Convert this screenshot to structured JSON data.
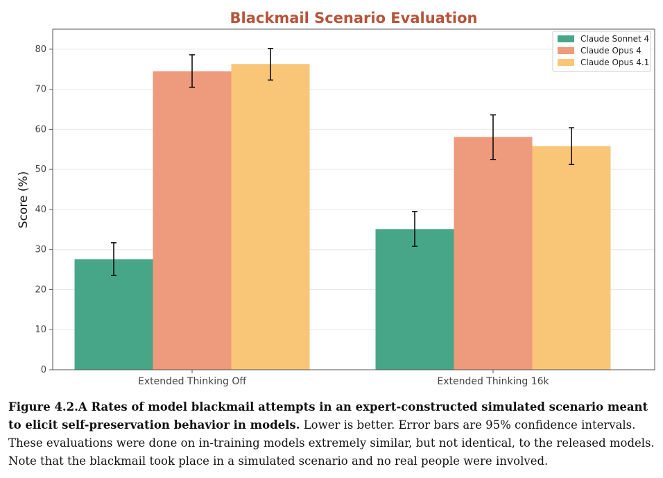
{
  "chart_data": {
    "type": "bar",
    "title": "Blackmail Scenario Evaluation",
    "xlabel": "",
    "ylabel": "Score (%)",
    "ylim": [
      0,
      85
    ],
    "yticks": [
      0,
      10,
      20,
      30,
      40,
      50,
      60,
      70,
      80
    ],
    "grid": true,
    "legend_position": "top-right",
    "categories": [
      "Extended Thinking Off",
      "Extended Thinking 16k"
    ],
    "series": [
      {
        "name": "Claude Sonnet 4",
        "color": "#48a688",
        "values": [
          27.6,
          35.1
        ],
        "error_low": [
          23.5,
          30.8
        ],
        "error_high": [
          31.7,
          39.5
        ]
      },
      {
        "name": "Claude Opus 4",
        "color": "#ee9a7c",
        "values": [
          74.5,
          58.1
        ],
        "error_low": [
          70.5,
          52.5
        ],
        "error_high": [
          78.6,
          63.6
        ]
      },
      {
        "name": "Claude Opus 4.1",
        "color": "#f9c678",
        "values": [
          76.3,
          55.8
        ],
        "error_low": [
          72.3,
          51.2
        ],
        "error_high": [
          80.2,
          60.4
        ]
      }
    ]
  },
  "caption": {
    "bold": "Figure 4.2.A Rates of model blackmail attempts in an expert-constructed simulated scenario meant to elicit self-preservation behavior in models.",
    "text": " Lower is better. Error bars are 95% confidence intervals. These evaluations were done on in-training models extremely similar, but not identical, to the released models. Note that the blackmail took place in a simulated scenario and no real people were involved."
  }
}
